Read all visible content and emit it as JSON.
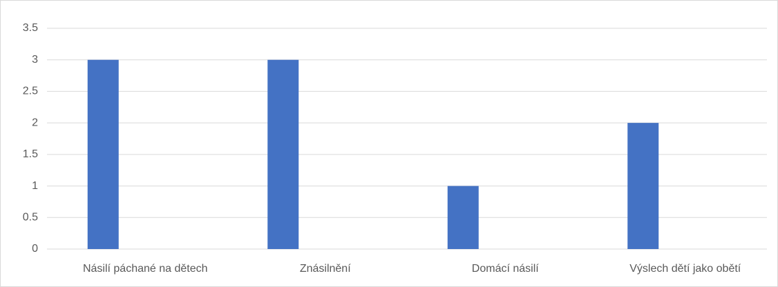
{
  "chart_data": {
    "type": "bar",
    "categories": [
      "Násilí páchané na dětech",
      "Znásilnění",
      "Domácí násilí",
      "Výslech dětí jako obětí"
    ],
    "values": [
      3,
      3,
      1,
      2
    ],
    "color": "#4472c4",
    "ylim": [
      0,
      3.5
    ],
    "yticks": [
      0,
      0.5,
      1,
      1.5,
      2,
      2.5,
      3,
      3.5
    ],
    "grid": true
  }
}
